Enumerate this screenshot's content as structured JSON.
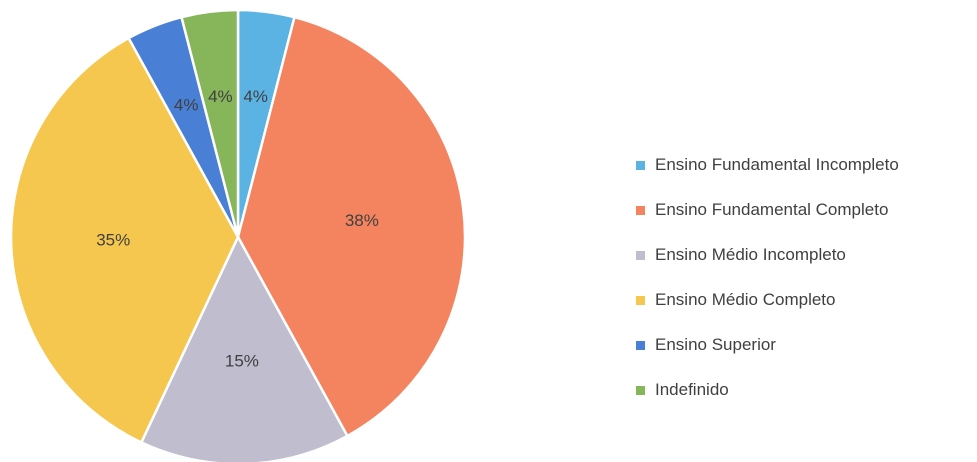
{
  "chart_data": {
    "type": "pie",
    "slices": [
      {
        "label": "Ensino Fundamental Incompleto",
        "value": 4,
        "display": "4%",
        "color": "#5BB3E4"
      },
      {
        "label": "Ensino Fundamental Completo",
        "value": 38,
        "display": "38%",
        "color": "#F4845F"
      },
      {
        "label": "Ensino Médio Incompleto",
        "value": 15,
        "display": "15%",
        "color": "#BFBDCE"
      },
      {
        "label": "Ensino Médio Completo",
        "value": 35,
        "display": "35%",
        "color": "#F6C74F"
      },
      {
        "label": "Ensino Superior",
        "value": 4,
        "display": "4%",
        "color": "#4A7FD6"
      },
      {
        "label": "Indefinido",
        "value": 4,
        "display": "4%",
        "color": "#86B55A"
      }
    ],
    "legend_position": "right",
    "start_angle": "12 o'clock",
    "direction": "clockwise"
  }
}
